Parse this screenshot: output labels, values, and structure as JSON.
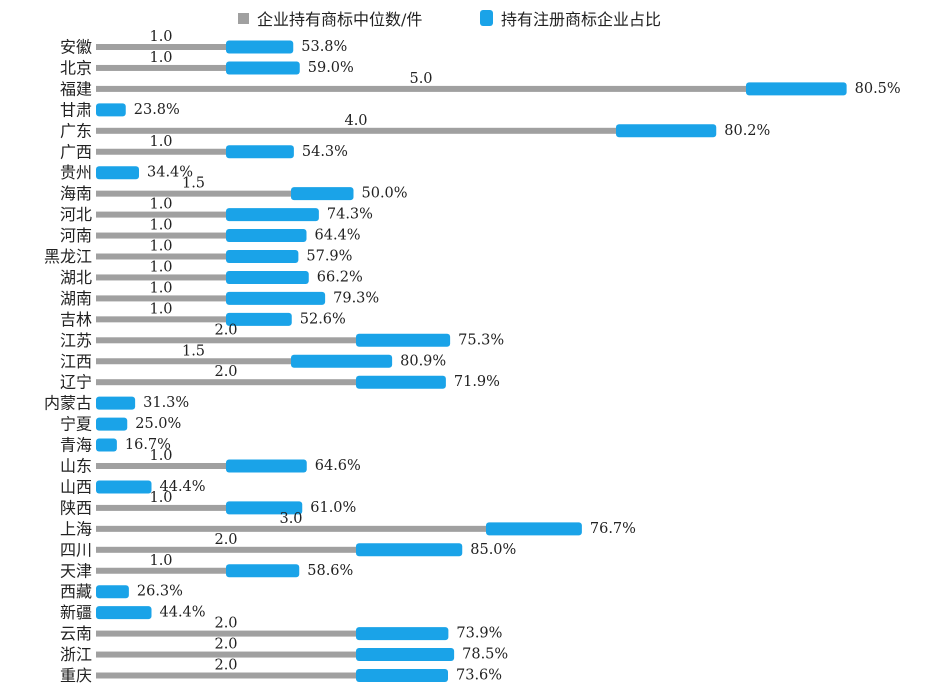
{
  "colors": {
    "median": "#a0a0a0",
    "share": "#1aa3e8"
  },
  "legend": {
    "median_label": "企业持有商标中位数/件",
    "share_label": "持有注册商标企业占比"
  },
  "chart_data": {
    "type": "bar",
    "orientation": "horizontal",
    "legend_position": "top",
    "grid": false,
    "categories": [
      "安徽",
      "北京",
      "福建",
      "甘肃",
      "广东",
      "广西",
      "贵州",
      "海南",
      "河北",
      "河南",
      "黑龙江",
      "湖北",
      "湖南",
      "吉林",
      "江苏",
      "江西",
      "辽宁",
      "内蒙古",
      "宁夏",
      "青海",
      "山东",
      "山西",
      "陕西",
      "上海",
      "四川",
      "天津",
      "西藏",
      "新疆",
      "云南",
      "浙江",
      "重庆"
    ],
    "series": [
      {
        "name": "企业持有商标中位数/件",
        "values": [
          1.0,
          1.0,
          5.0,
          0,
          4.0,
          1.0,
          0,
          1.5,
          1.0,
          1.0,
          1.0,
          1.0,
          1.0,
          1.0,
          2.0,
          1.5,
          2.0,
          0,
          0,
          0,
          1.0,
          0,
          1.0,
          3.0,
          2.0,
          1.0,
          0,
          0,
          2.0,
          2.0,
          2.0
        ],
        "labels": [
          "1.0",
          "1.0",
          "5.0",
          "",
          "4.0",
          "1.0",
          "",
          "1.5",
          "1.0",
          "1.0",
          "1.0",
          "1.0",
          "1.0",
          "1.0",
          "2.0",
          "1.5",
          "2.0",
          "",
          "",
          "",
          "1.0",
          "",
          "1.0",
          "3.0",
          "2.0",
          "1.0",
          "",
          "",
          "2.0",
          "2.0",
          "2.0"
        ]
      },
      {
        "name": "持有注册商标企业占比",
        "values": [
          53.8,
          59.0,
          80.5,
          23.8,
          80.2,
          54.3,
          34.4,
          50.0,
          74.3,
          64.4,
          57.9,
          66.2,
          79.3,
          52.6,
          75.3,
          80.9,
          71.9,
          31.3,
          25.0,
          16.7,
          64.6,
          44.4,
          61.0,
          76.7,
          85.0,
          58.6,
          26.3,
          44.4,
          73.9,
          78.5,
          73.6
        ],
        "labels": [
          "53.8%",
          "59.0%",
          "80.5%",
          "23.8%",
          "80.2%",
          "54.3%",
          "34.4%",
          "50.0%",
          "74.3%",
          "64.4%",
          "57.9%",
          "66.2%",
          "79.3%",
          "52.6%",
          "75.3%",
          "80.9%",
          "71.9%",
          "31.3%",
          "25.0%",
          "16.7%",
          "64.6%",
          "44.4%",
          "61.0%",
          "76.7%",
          "85.0%",
          "58.6%",
          "26.3%",
          "44.4%",
          "73.9%",
          "78.5%",
          "73.6%"
        ]
      }
    ]
  }
}
